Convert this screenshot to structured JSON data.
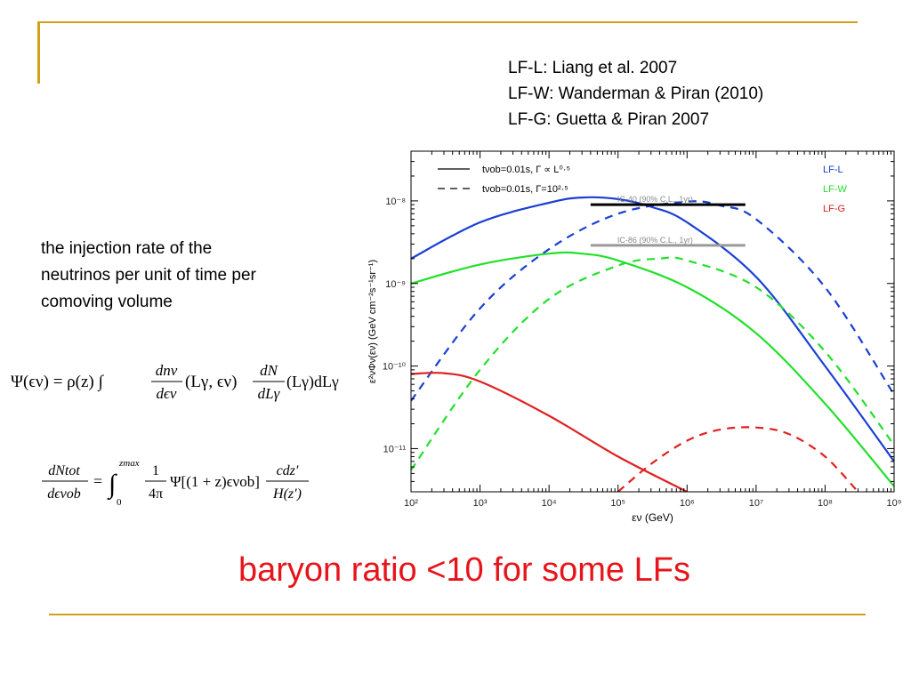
{
  "slide": {
    "references": [
      "LF-L: Liang et al. 2007",
      "LF-W: Wanderman & Piran (2010)",
      "LF-G: Guetta & Piran 2007"
    ],
    "description": [
      "the injection rate of the",
      "neutrinos per unit of time per",
      "comoving volume"
    ],
    "conclusion": "baryon ratio <10 for some LFs",
    "colors": {
      "accent_line": "#d4a017",
      "conclusion": "#e8141b"
    }
  },
  "equations": {
    "eq1": {
      "lhs": "Ψ(ϵν) = ρ(z) ∫",
      "t1_num": "dnν",
      "t1_den": "dϵν",
      "t1_args": "(Lγ, ϵν)",
      "t2_num": "dN",
      "t2_den": "dLγ",
      "t2_args": "(Lγ)dLγ"
    },
    "eq2": {
      "lhs_num": "dNtot",
      "lhs_den": "dϵνob",
      "eq_sign": "=",
      "int_upper": "zmax",
      "int_lower": "0",
      "frac1_num": "1",
      "frac1_den": "4π",
      "mid": "Ψ[(1 + z)ϵνob]",
      "frac2_num": "cdz′",
      "frac2_den": "H(z′)"
    }
  },
  "chart_data": {
    "type": "line",
    "xscale": "log",
    "yscale": "log",
    "xlim": [
      100,
      1000000000
    ],
    "ylim": [
      3e-12,
      4e-08
    ],
    "xlabel": "εν (GeV)",
    "ylabel": "ε²νΦν(εν) (GeV cm⁻²s⁻¹sr⁻¹)",
    "x_ticks": [
      {
        "v": 100,
        "label": "10²"
      },
      {
        "v": 1000,
        "label": "10³"
      },
      {
        "v": 10000,
        "label": "10⁴"
      },
      {
        "v": 100000,
        "label": "10⁵"
      },
      {
        "v": 1000000,
        "label": "10⁶"
      },
      {
        "v": 10000000,
        "label": "10⁷"
      },
      {
        "v": 100000000,
        "label": "10⁸"
      },
      {
        "v": 1000000000,
        "label": "10⁹"
      }
    ],
    "y_ticks": [
      {
        "v": 1e-08,
        "label": "10⁻⁸"
      },
      {
        "v": 1e-09,
        "label": "10⁻⁹"
      },
      {
        "v": 1e-10,
        "label": "10⁻¹⁰"
      },
      {
        "v": 1e-11,
        "label": "10⁻¹¹"
      }
    ],
    "style_legend": [
      {
        "style": "solid",
        "label": "tνob=0.01s, Γ ∝ L⁰·⁵"
      },
      {
        "style": "dashed",
        "label": "tνob=0.01s, Γ=10²·⁵"
      }
    ],
    "legend_placement": "top-left",
    "color_legend_placement": "top-right",
    "series": [
      {
        "name": "LF-L",
        "style": "solid",
        "color": "#1a3fd4",
        "x": [
          100,
          1000,
          10000,
          30000,
          100000,
          300000,
          1000000,
          10000000,
          100000000,
          1000000000
        ],
        "y": [
          2e-09,
          5.5e-09,
          9.5e-09,
          1.1e-08,
          1.05e-08,
          8.5e-09,
          5.5e-09,
          1.2e-09,
          1e-10,
          7e-12
        ]
      },
      {
        "name": "",
        "style": "dashed",
        "color": "#1a3fd4",
        "x": [
          100,
          1000,
          10000,
          100000,
          1000000,
          3000000,
          10000000,
          100000000,
          1000000000
        ],
        "y": [
          3.8e-11,
          5e-10,
          2.6e-09,
          7e-09,
          9.8e-09,
          8.8e-09,
          6e-09,
          9e-10,
          4.5e-11
        ]
      },
      {
        "name": "LF-W",
        "style": "solid",
        "color": "#22e02b",
        "x": [
          100,
          1000,
          10000,
          30000,
          100000,
          1000000,
          10000000,
          100000000,
          1000000000
        ],
        "y": [
          1e-09,
          1.7e-09,
          2.3e-09,
          2.3e-09,
          1.9e-09,
          9e-10,
          2.5e-10,
          3.5e-11,
          3.5e-12
        ]
      },
      {
        "name": "",
        "style": "dashed",
        "color": "#22e02b",
        "x": [
          100,
          1000,
          10000,
          100000,
          400000,
          1000000,
          10000000,
          100000000,
          1000000000
        ],
        "y": [
          5.5e-12,
          9e-11,
          6.5e-10,
          1.65e-09,
          2e-09,
          1.9e-09,
          9e-10,
          1.5e-10,
          1.1e-11
        ]
      },
      {
        "name": "LF-G",
        "style": "solid",
        "color": "#e02020",
        "x": [
          100,
          300,
          1000,
          10000,
          100000,
          1000000
        ],
        "y": [
          8e-11,
          8.2e-11,
          6.5e-11,
          2.5e-11,
          8e-12,
          3e-12
        ]
      },
      {
        "name": "",
        "style": "dashed",
        "color": "#e02020",
        "x": [
          100000,
          300000,
          1000000,
          3000000,
          10000000,
          30000000,
          100000000,
          300000000
        ],
        "y": [
          3e-12,
          6.5e-12,
          1.25e-11,
          1.7e-11,
          1.8e-11,
          1.5e-11,
          8e-12,
          3e-12
        ]
      }
    ],
    "limits": [
      {
        "label": "IC-40 (90% C.L., 1yr)",
        "x": [
          40000,
          7000000
        ],
        "y": 9e-09,
        "color": "#000000"
      },
      {
        "label": "IC-86 (90% C.L., 1yr)",
        "x": [
          40000,
          7000000
        ],
        "y": 2.9e-09,
        "color": "#999999"
      }
    ]
  }
}
